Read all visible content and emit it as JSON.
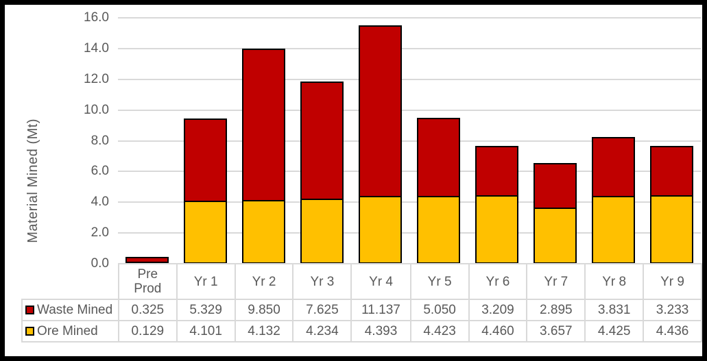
{
  "chart_data": {
    "type": "bar",
    "stacked": true,
    "title": "",
    "ylabel": "Material Mined (Mt)",
    "categories": [
      "Pre Prod",
      "Yr 1",
      "Yr 2",
      "Yr 3",
      "Yr 4",
      "Yr 5",
      "Yr 6",
      "Yr 7",
      "Yr 8",
      "Yr 9"
    ],
    "series": [
      {
        "name": "Waste Mined",
        "color": "#C00000",
        "values": [
          0.325,
          5.329,
          9.85,
          7.625,
          11.137,
          5.05,
          3.209,
          2.895,
          3.831,
          3.233
        ]
      },
      {
        "name": "Ore Mined",
        "color": "#FFC000",
        "values": [
          0.129,
          4.101,
          4.132,
          4.234,
          4.393,
          4.423,
          4.46,
          3.657,
          4.425,
          4.436
        ]
      }
    ],
    "ylim": [
      0,
      16
    ],
    "ytick_step": 2,
    "ytick_format": "0.0",
    "value_format": "0.000",
    "grid": true,
    "legend_position": "data-table-left"
  },
  "colors": {
    "waste": "#C00000",
    "ore": "#FFC000",
    "gridline": "#D9D9D9",
    "table_border": "#D9D9D9",
    "text": "#595959",
    "bar_outline": "#000000",
    "frame": "#000000",
    "background": "#FFFFFF"
  }
}
